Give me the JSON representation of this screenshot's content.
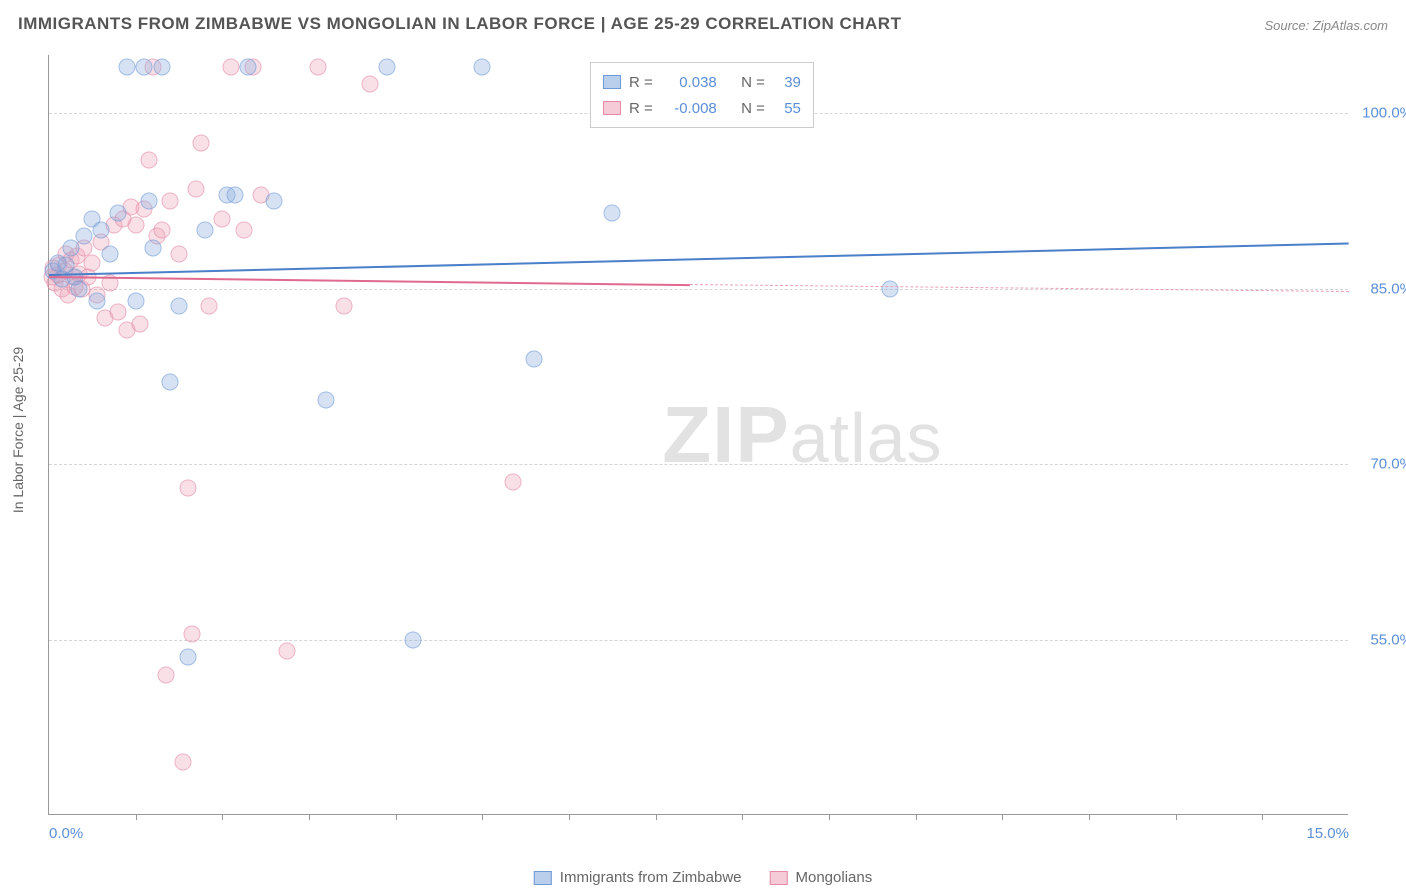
{
  "title": "IMMIGRANTS FROM ZIMBABWE VS MONGOLIAN IN LABOR FORCE | AGE 25-29 CORRELATION CHART",
  "source": "Source: ZipAtlas.com",
  "watermark_part1": "ZIP",
  "watermark_part2": "atlas",
  "chart": {
    "type": "scatter",
    "y_axis_label": "In Labor Force | Age 25-29",
    "x_min": 0.0,
    "x_max": 15.0,
    "y_min": 40.0,
    "y_max": 105.0,
    "y_ticks": [
      55.0,
      70.0,
      85.0,
      100.0
    ],
    "y_tick_labels": [
      "55.0%",
      "70.0%",
      "85.0%",
      "100.0%"
    ],
    "x_ticks": [
      0.0,
      15.0
    ],
    "x_tick_labels": [
      "0.0%",
      "15.0%"
    ],
    "x_minor_ticks": [
      1,
      2,
      3,
      4,
      5,
      6,
      7,
      8,
      9,
      10,
      11,
      12,
      13,
      14
    ],
    "background_color": "#ffffff",
    "grid_color": "#d5d5d5",
    "axis_color": "#999999",
    "label_color": "#5b8fd6"
  },
  "legend_stats": {
    "series1": {
      "swatch": "blue",
      "R_label": "R =",
      "R": "0.038",
      "N_label": "N =",
      "N": "39"
    },
    "series2": {
      "swatch": "pink",
      "R_label": "R =",
      "R": "-0.008",
      "N_label": "N =",
      "N": "55"
    }
  },
  "bottom_legend": {
    "series1": {
      "swatch": "blue",
      "label": "Immigrants from Zimbabwe"
    },
    "series2": {
      "swatch": "pink",
      "label": "Mongolians"
    }
  },
  "series": {
    "blue": {
      "color_fill": "#8cafde",
      "color_stroke": "#6f9ad6",
      "trend": {
        "x1": 0.0,
        "y1": 86.3,
        "x2": 15.0,
        "y2": 89.0,
        "color": "#4a7fc9"
      },
      "points": [
        [
          0.05,
          86.5
        ],
        [
          0.1,
          87.2
        ],
        [
          0.15,
          85.8
        ],
        [
          0.2,
          87.0
        ],
        [
          0.25,
          88.5
        ],
        [
          0.3,
          86.0
        ],
        [
          0.35,
          85.0
        ],
        [
          0.4,
          89.5
        ],
        [
          0.5,
          91.0
        ],
        [
          0.55,
          84.0
        ],
        [
          0.6,
          90.0
        ],
        [
          0.7,
          88.0
        ],
        [
          0.8,
          91.5
        ],
        [
          0.9,
          104.0
        ],
        [
          1.0,
          84.0
        ],
        [
          1.1,
          104.0
        ],
        [
          1.15,
          92.5
        ],
        [
          1.2,
          88.5
        ],
        [
          1.3,
          104.0
        ],
        [
          1.4,
          77.0
        ],
        [
          1.5,
          83.5
        ],
        [
          1.6,
          53.5
        ],
        [
          1.8,
          90.0
        ],
        [
          2.05,
          93.0
        ],
        [
          2.15,
          93.0
        ],
        [
          2.3,
          104.0
        ],
        [
          2.6,
          92.5
        ],
        [
          3.2,
          75.5
        ],
        [
          3.9,
          104.0
        ],
        [
          4.2,
          55.0
        ],
        [
          5.0,
          104.0
        ],
        [
          5.6,
          79.0
        ],
        [
          6.5,
          91.5
        ],
        [
          9.7,
          85.0
        ]
      ]
    },
    "pink": {
      "color_fill": "#eba0b4",
      "color_stroke": "#e48aa5",
      "trend_solid": {
        "x1": 0.0,
        "y1": 86.1,
        "x2": 7.4,
        "y2": 85.4,
        "color": "#e06a8f"
      },
      "trend_dashed": {
        "x1": 7.4,
        "y1": 85.4,
        "x2": 15.0,
        "y2": 84.8,
        "color": "#e9a0b4"
      },
      "points": [
        [
          0.03,
          86.0
        ],
        [
          0.05,
          86.8
        ],
        [
          0.07,
          85.5
        ],
        [
          0.1,
          86.2
        ],
        [
          0.12,
          87.0
        ],
        [
          0.15,
          85.0
        ],
        [
          0.18,
          86.5
        ],
        [
          0.2,
          88.0
        ],
        [
          0.22,
          84.5
        ],
        [
          0.25,
          87.5
        ],
        [
          0.28,
          86.0
        ],
        [
          0.3,
          85.2
        ],
        [
          0.32,
          87.8
        ],
        [
          0.35,
          86.3
        ],
        [
          0.38,
          85.0
        ],
        [
          0.4,
          88.5
        ],
        [
          0.45,
          86.0
        ],
        [
          0.5,
          87.2
        ],
        [
          0.55,
          84.5
        ],
        [
          0.6,
          89.0
        ],
        [
          0.65,
          82.5
        ],
        [
          0.7,
          85.5
        ],
        [
          0.75,
          90.5
        ],
        [
          0.8,
          83.0
        ],
        [
          0.85,
          91.0
        ],
        [
          0.9,
          81.5
        ],
        [
          0.95,
          92.0
        ],
        [
          1.0,
          90.5
        ],
        [
          1.05,
          82.0
        ],
        [
          1.1,
          91.8
        ],
        [
          1.15,
          96.0
        ],
        [
          1.2,
          104.0
        ],
        [
          1.25,
          89.5
        ],
        [
          1.3,
          90.0
        ],
        [
          1.35,
          52.0
        ],
        [
          1.4,
          92.5
        ],
        [
          1.5,
          88.0
        ],
        [
          1.55,
          44.5
        ],
        [
          1.6,
          68.0
        ],
        [
          1.65,
          55.5
        ],
        [
          1.7,
          93.5
        ],
        [
          1.75,
          97.5
        ],
        [
          1.85,
          83.5
        ],
        [
          2.0,
          91.0
        ],
        [
          2.1,
          104.0
        ],
        [
          2.25,
          90.0
        ],
        [
          2.35,
          104.0
        ],
        [
          2.45,
          93.0
        ],
        [
          2.75,
          54.0
        ],
        [
          3.1,
          104.0
        ],
        [
          3.4,
          83.5
        ],
        [
          3.7,
          102.5
        ],
        [
          5.35,
          68.5
        ]
      ]
    }
  }
}
